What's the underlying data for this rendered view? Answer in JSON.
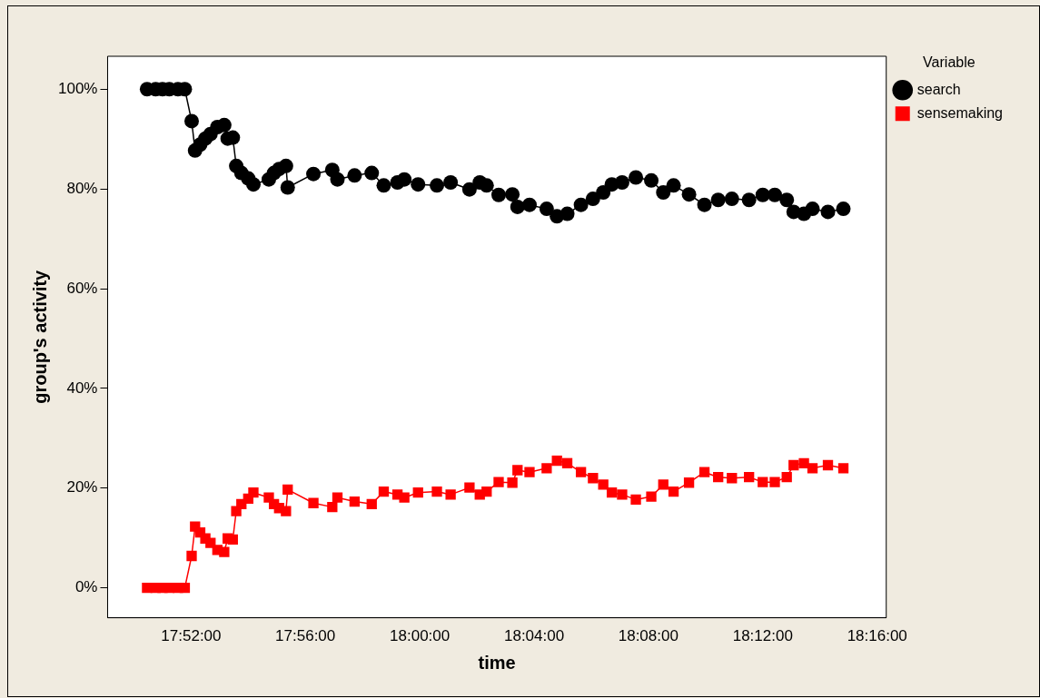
{
  "chart_data": {
    "type": "line",
    "xlabel": "time",
    "ylabel": "group's activity",
    "legend_title": "Variable",
    "legend": "top right",
    "grid": false,
    "line_style": "solid",
    "x": [
      17.841,
      17.846,
      17.85,
      17.854,
      17.859,
      17.863,
      17.867,
      17.869,
      17.872,
      17.875,
      17.878,
      17.882,
      17.886,
      17.888,
      17.891,
      17.893,
      17.896,
      17.9,
      17.903,
      17.912,
      17.915,
      17.918,
      17.922,
      17.923,
      17.938,
      17.949,
      17.952,
      17.962,
      17.972,
      17.979,
      17.987,
      17.991,
      17.999,
      18.01,
      18.018,
      18.029,
      18.035,
      18.039,
      18.046,
      18.054,
      18.057,
      18.064,
      18.074,
      18.08,
      18.086,
      18.094,
      18.101,
      18.107,
      18.112,
      18.118,
      18.126,
      18.135,
      18.142,
      18.148,
      18.157,
      18.166,
      18.174,
      18.182,
      18.192,
      18.2,
      18.207,
      18.214,
      18.218,
      18.224,
      18.229,
      18.238,
      18.247
    ],
    "xlim": [
      17.818,
      18.272
    ],
    "xticks": [
      {
        "value": 17.8667,
        "label": "17:52:00"
      },
      {
        "value": 17.9333,
        "label": "17:56:00"
      },
      {
        "value": 18,
        "label": "18:00:00"
      },
      {
        "value": 18.0667,
        "label": "18:04:00"
      },
      {
        "value": 18.1333,
        "label": "18:08:00"
      },
      {
        "value": 18.2,
        "label": "18:12:00"
      },
      {
        "value": 18.2667,
        "label": "18:16:00"
      }
    ],
    "ylim": [
      -6,
      106.6
    ],
    "yticks": [
      {
        "value": 0,
        "label": "0%"
      },
      {
        "value": 20,
        "label": "20%"
      },
      {
        "value": 40,
        "label": "40%"
      },
      {
        "value": 60,
        "label": "60%"
      },
      {
        "value": 80,
        "label": "80%"
      },
      {
        "value": 100,
        "label": "100%"
      }
    ],
    "series": [
      {
        "name": "search",
        "color": "#000000",
        "marker": "circle",
        "values": [
          100,
          100,
          100,
          100,
          100,
          100,
          93.6,
          87.7,
          88.9,
          90.1,
          91.0,
          92.4,
          92.8,
          90.1,
          90.3,
          84.6,
          83.2,
          82.1,
          80.9,
          81.9,
          83.2,
          84.0,
          84.6,
          80.3,
          83.0,
          83.8,
          81.9,
          82.7,
          83.2,
          80.7,
          81.3,
          81.9,
          80.9,
          80.7,
          81.3,
          79.9,
          81.3,
          80.7,
          78.8,
          78.9,
          76.4,
          76.8,
          76.0,
          74.5,
          75.0,
          76.8,
          78.0,
          79.3,
          80.9,
          81.3,
          82.3,
          81.7,
          79.3,
          80.7,
          78.9,
          76.8,
          77.8,
          78.0,
          77.8,
          78.8,
          78.8,
          77.8,
          75.4,
          75.0,
          76.0,
          75.4,
          76.0
        ]
      },
      {
        "name": "sensemaking",
        "color": "#ff0000",
        "marker": "square",
        "values": [
          0,
          0,
          0,
          0,
          0,
          0,
          6.4,
          12.3,
          11.1,
          9.9,
          9.0,
          7.6,
          7.2,
          9.9,
          9.7,
          15.4,
          16.8,
          17.9,
          19.1,
          18.1,
          16.8,
          16.0,
          15.4,
          19.7,
          17.0,
          16.2,
          18.1,
          17.3,
          16.8,
          19.3,
          18.7,
          18.1,
          19.1,
          19.3,
          18.7,
          20.1,
          18.7,
          19.3,
          21.2,
          21.1,
          23.6,
          23.2,
          24.0,
          25.5,
          25.0,
          23.2,
          22.0,
          20.7,
          19.1,
          18.7,
          17.7,
          18.3,
          20.7,
          19.3,
          21.1,
          23.2,
          22.2,
          22.0,
          22.2,
          21.2,
          21.2,
          22.2,
          24.6,
          25.0,
          24.0,
          24.6,
          24.0
        ]
      }
    ]
  }
}
